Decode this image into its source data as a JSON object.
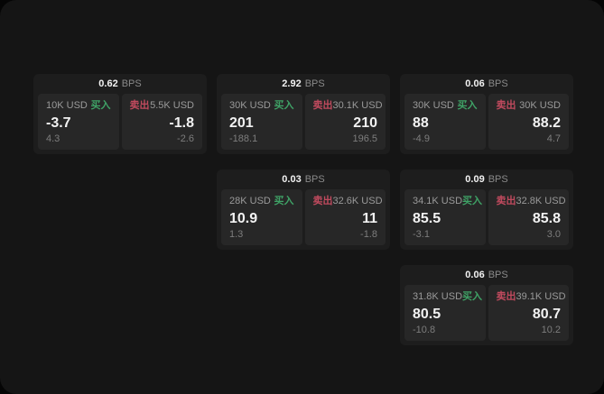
{
  "labels": {
    "bps": "BPS",
    "buy": "买入",
    "sell": "卖出"
  },
  "colors": {
    "buy_green": "#3fa266",
    "sell_red": "#c04a5e",
    "page_bg": "#151515",
    "card_bg": "#1d1d1d",
    "panel_bg": "#272727"
  },
  "cards": [
    {
      "bps": "0.62",
      "col": 1,
      "row": 1,
      "buy_amount": "10K USD",
      "buy_price": "-3.7",
      "buy_delta": "4.3",
      "sell_amount": "5.5K USD",
      "sell_price": "-1.8",
      "sell_delta": "-2.6"
    },
    {
      "bps": "2.92",
      "col": 2,
      "row": 1,
      "buy_amount": "30K USD",
      "buy_price": "201",
      "buy_delta": "-188.1",
      "sell_amount": "30.1K USD",
      "sell_price": "210",
      "sell_delta": "196.5"
    },
    {
      "bps": "0.06",
      "col": 3,
      "row": 1,
      "buy_amount": "30K USD",
      "buy_price": "88",
      "buy_delta": "-4.9",
      "sell_amount": "30K USD",
      "sell_price": "88.2",
      "sell_delta": "4.7"
    },
    {
      "bps": "0.03",
      "col": 2,
      "row": 2,
      "buy_amount": "28K USD",
      "buy_price": "10.9",
      "buy_delta": "1.3",
      "sell_amount": "32.6K USD",
      "sell_price": "11",
      "sell_delta": "-1.8"
    },
    {
      "bps": "0.09",
      "col": 3,
      "row": 2,
      "buy_amount": "34.1K USD",
      "buy_price": "85.5",
      "buy_delta": "-3.1",
      "sell_amount": "32.8K USD",
      "sell_price": "85.8",
      "sell_delta": "3.0"
    },
    {
      "bps": "0.06",
      "col": 3,
      "row": 3,
      "buy_amount": "31.8K USD",
      "buy_price": "80.5",
      "buy_delta": "-10.8",
      "sell_amount": "39.1K USD",
      "sell_price": "80.7",
      "sell_delta": "10.2"
    }
  ]
}
